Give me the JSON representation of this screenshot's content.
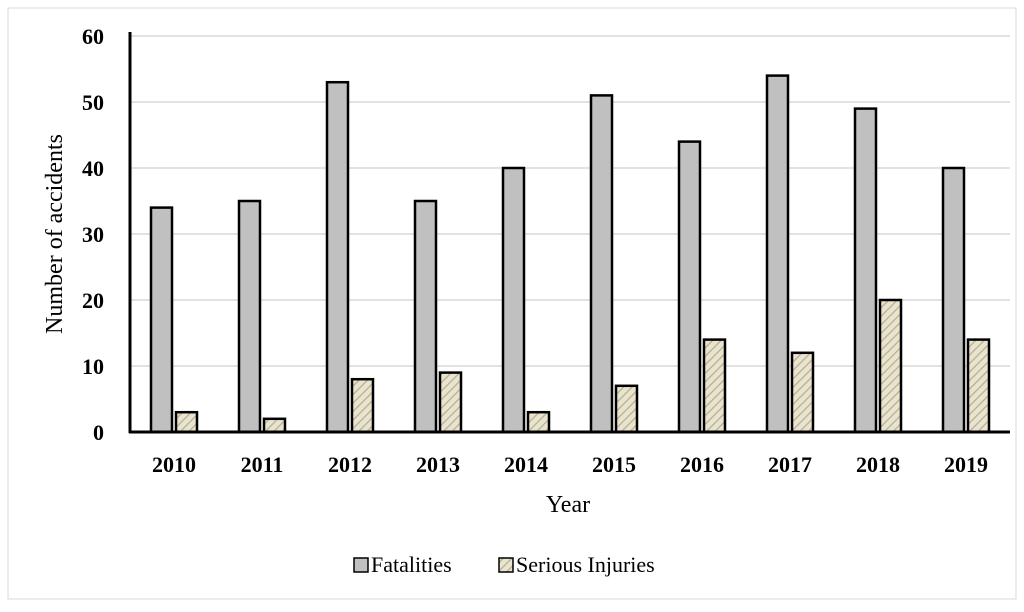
{
  "chart_data": {
    "type": "bar",
    "title": "",
    "xlabel": "Year",
    "ylabel": "Number of accidents",
    "ylim": [
      0,
      60
    ],
    "yticks": [
      0,
      10,
      20,
      30,
      40,
      50,
      60
    ],
    "grid": true,
    "legend_position": "bottom",
    "categories": [
      "2010",
      "2011",
      "2012",
      "2013",
      "2014",
      "2015",
      "2016",
      "2017",
      "2018",
      "2019"
    ],
    "series": [
      {
        "name": "Fatalities",
        "values": [
          34,
          35,
          53,
          35,
          40,
          51,
          44,
          54,
          49,
          40
        ],
        "color": "#c0c0c0",
        "pattern": "solid"
      },
      {
        "name": "Serious Injuries",
        "values": [
          3,
          2,
          8,
          9,
          3,
          7,
          14,
          12,
          20,
          14
        ],
        "color": "#e9e4cf",
        "pattern": "diagonal-hatch"
      }
    ]
  },
  "colors": {
    "frame": "#d9d9d9",
    "gridline": "#d9d9d9",
    "axis": "#000000",
    "bar_outline": "#000000",
    "hatch_line": "#b7ae8c"
  }
}
